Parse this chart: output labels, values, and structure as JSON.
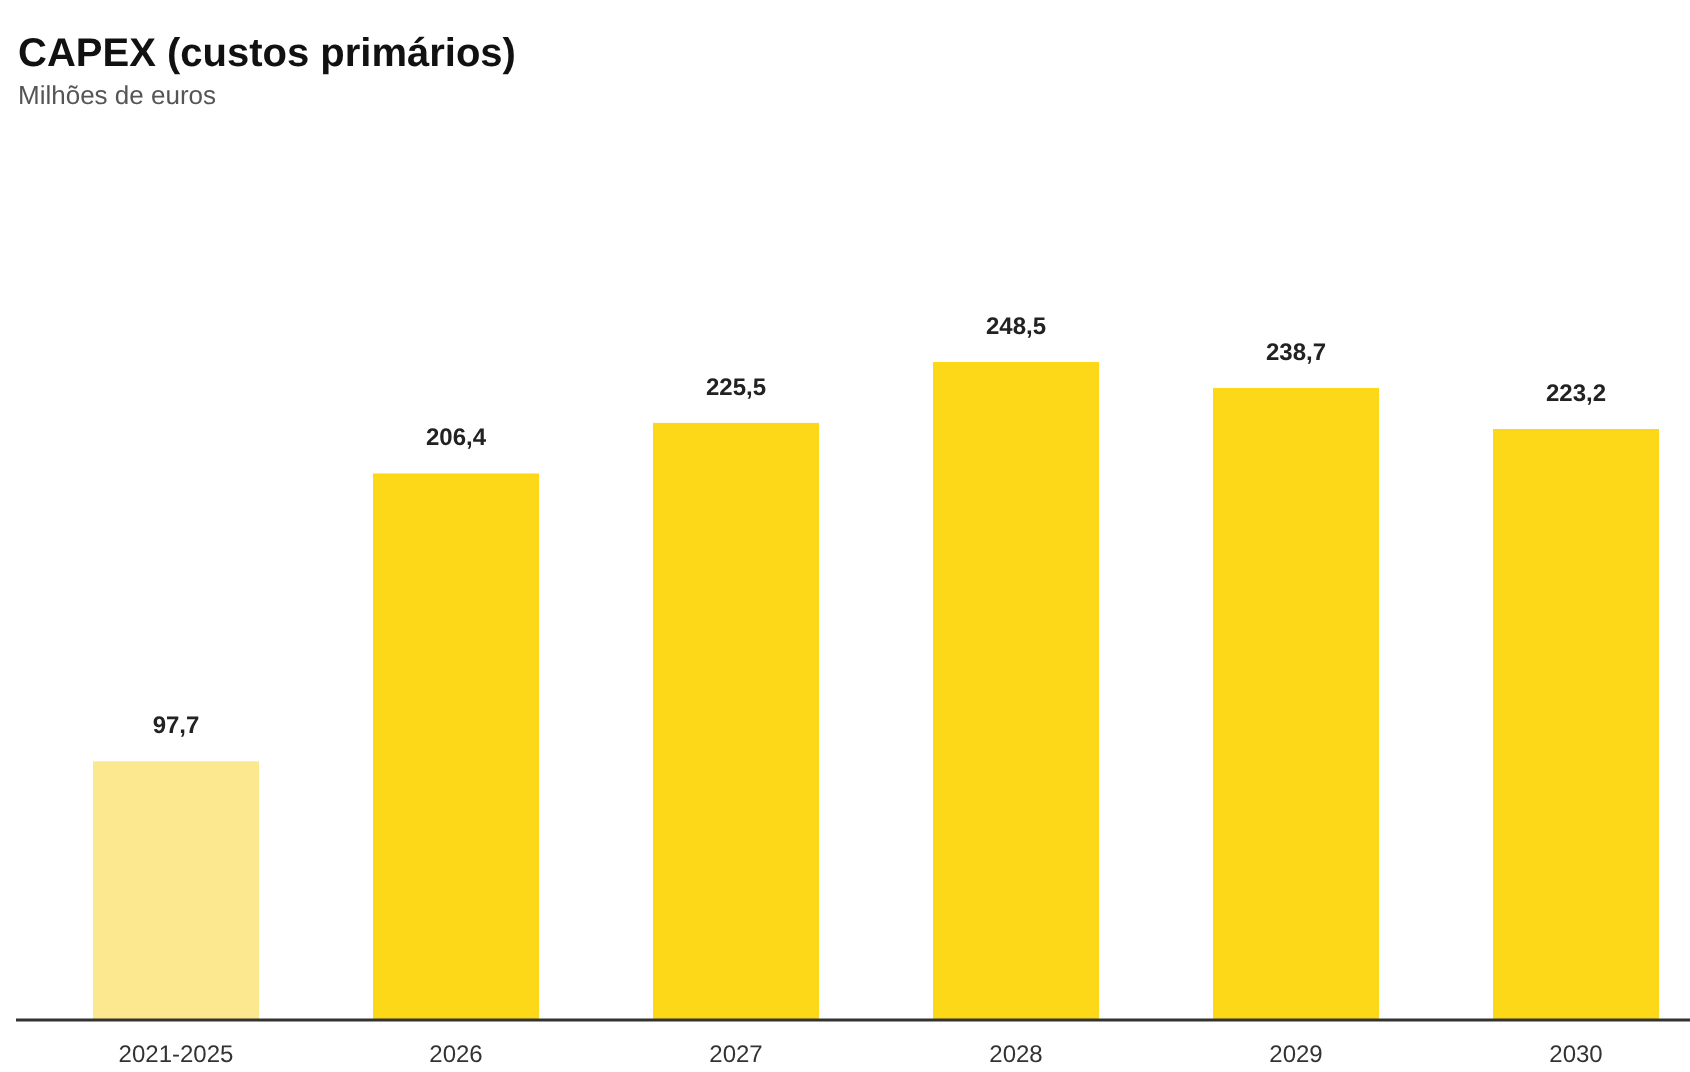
{
  "chart_data": {
    "type": "bar",
    "title": "CAPEX (custos primários)",
    "subtitle": "Milhões de euros",
    "categories": [
      "2021-2025",
      "2026",
      "2027",
      "2028",
      "2029",
      "2030"
    ],
    "values": [
      97.7,
      206.4,
      225.5,
      248.5,
      238.7,
      223.2
    ],
    "colors": [
      "#fbe88f",
      "#fdd818",
      "#fdd818",
      "#fdd818",
      "#fdd818",
      "#fdd818"
    ],
    "value_labels": [
      "97,7",
      "206,4",
      "225,5",
      "248,5",
      "238,7",
      "223,2"
    ]
  }
}
